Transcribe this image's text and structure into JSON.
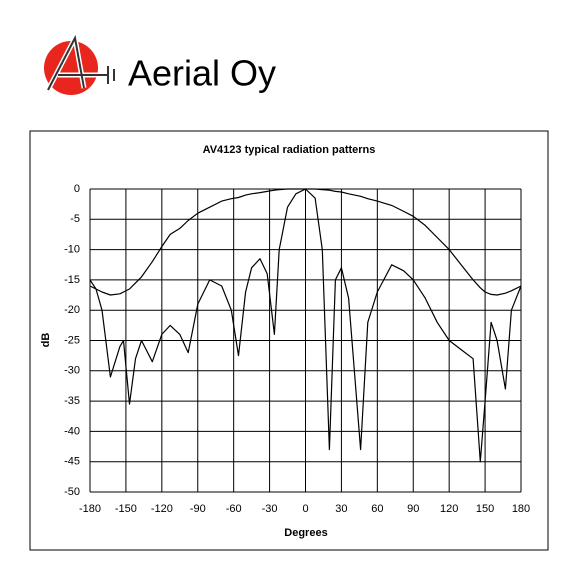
{
  "logo_text": "Aerial Oy",
  "chart_data": {
    "type": "line",
    "title": "AV4123 typical radiation patterns",
    "x_label": "Degrees",
    "y_label": "dB",
    "x": [
      -180,
      -175,
      -170,
      -163,
      -155,
      -152,
      -147,
      -142,
      -137,
      -128,
      -120,
      -113,
      -105,
      -98,
      -90,
      -80,
      -70,
      -62,
      -56,
      -50,
      -45,
      -38,
      -32,
      -26,
      -22,
      -15,
      -8,
      0,
      8,
      14,
      20,
      25,
      30,
      36,
      46,
      52,
      60,
      72,
      82,
      90,
      100,
      110,
      120,
      130,
      140,
      146,
      150,
      155,
      160,
      167,
      172,
      180
    ],
    "series": [
      {
        "color": "#000000",
        "values": [
          -16,
          -16.5,
          -17,
          -17.5,
          -17.3,
          -17,
          -16.5,
          -15.5,
          -14.5,
          -12,
          -9.5,
          -7.5,
          -6.5,
          -5.2,
          -4,
          -3,
          -2,
          -1.6,
          -1.4,
          -1,
          -0.8,
          -0.6,
          -0.4,
          -0.2,
          -0.1,
          0,
          0,
          0,
          0,
          -0.1,
          -0.2,
          -0.4,
          -0.5,
          -0.8,
          -1.2,
          -1.6,
          -2,
          -2.7,
          -3.7,
          -4.5,
          -6,
          -8,
          -10,
          -12.5,
          -15,
          -16.3,
          -17,
          -17.4,
          -17.5,
          -17.2,
          -16.8,
          -16
        ]
      },
      {
        "color": "#000000",
        "values": [
          -15,
          -16.5,
          -20,
          -31,
          -26,
          -25,
          -35.5,
          -28,
          -25,
          -28.5,
          -24,
          -22.5,
          -24,
          -27,
          -19,
          -15,
          -16,
          -20,
          -27.5,
          -17,
          -13,
          -11.5,
          -14,
          -24,
          -10,
          -3,
          -0.8,
          0,
          -1.5,
          -10,
          -43,
          -15,
          -13,
          -18,
          -43,
          -22,
          -17,
          -12.5,
          -13.5,
          -15,
          -18,
          -22,
          -25,
          -26.5,
          -28,
          -45,
          -35,
          -22,
          -25,
          -33,
          -20,
          -16
        ]
      }
    ],
    "xlim": [
      -180,
      180
    ],
    "ylim": [
      -50,
      0
    ],
    "xticks": [
      -180,
      -150,
      -120,
      -90,
      -60,
      -30,
      0,
      30,
      60,
      90,
      120,
      150,
      180
    ],
    "yticks": [
      0,
      -5,
      -10,
      -15,
      -20,
      -25,
      -30,
      -35,
      -40,
      -45,
      -50
    ],
    "grid": true
  }
}
